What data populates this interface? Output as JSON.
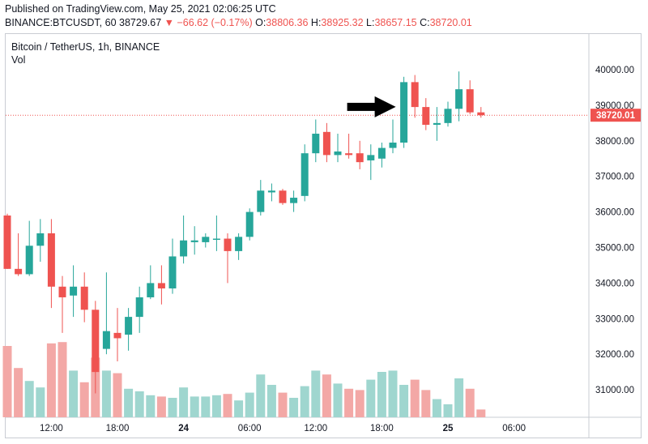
{
  "header": {
    "published": "Published on TradingView.com, May 25, 2021 02:06:25 UTC",
    "symbol": "BINANCE:BTCUSDT, 60",
    "last": "38729.67",
    "change": "▼ −66.62 (−0.17%)",
    "open_label": "O:",
    "open_value": "38806.36",
    "high_label": "H:",
    "high_value": "38925.32",
    "low_label": "L:",
    "low_value": "38657.15",
    "close_label": "C:",
    "close_value": "38720.01"
  },
  "legend": {
    "title": "Bitcoin / TetherUS, 1h, BINANCE",
    "volume": "Vol"
  },
  "colors": {
    "up": "#26a69a",
    "down": "#ef5350",
    "up_vol": "#9fd6cf",
    "down_vol": "#f3a8a6",
    "price_line": "#ef5350"
  },
  "chart_data": {
    "type": "candlestick",
    "price_axis": {
      "min": 30400,
      "max": 40400,
      "ticks": [
        "40000.00",
        "39000.00",
        "38000.00",
        "37000.00",
        "36000.00",
        "35000.00",
        "34000.00",
        "33000.00",
        "32000.00",
        "31000.00"
      ]
    },
    "time_axis": {
      "ticks": [
        {
          "label": "12:00",
          "bar": 4,
          "bold": false
        },
        {
          "label": "18:00",
          "bar": 10,
          "bold": false
        },
        {
          "label": "24",
          "bar": 16,
          "bold": true
        },
        {
          "label": "06:00",
          "bar": 22,
          "bold": false
        },
        {
          "label": "12:00",
          "bar": 28,
          "bold": false
        },
        {
          "label": "18:00",
          "bar": 34,
          "bold": false
        },
        {
          "label": "25",
          "bar": 40,
          "bold": true
        },
        {
          "label": "06:00",
          "bar": 46,
          "bold": false
        }
      ]
    },
    "last_price": "38720.01",
    "last_price_value": 38720.01,
    "volume_scale_max": 1,
    "candles": [
      {
        "o": 35900,
        "h": 35950,
        "l": 34400,
        "c": 34400,
        "v": 0.55
      },
      {
        "o": 34400,
        "h": 35400,
        "l": 34200,
        "c": 34250,
        "v": 0.38
      },
      {
        "o": 34250,
        "h": 35750,
        "l": 34200,
        "c": 35050,
        "v": 0.28
      },
      {
        "o": 35050,
        "h": 35800,
        "l": 34600,
        "c": 35400,
        "v": 0.23
      },
      {
        "o": 35400,
        "h": 35800,
        "l": 33300,
        "c": 33900,
        "v": 0.57
      },
      {
        "o": 33900,
        "h": 34200,
        "l": 32600,
        "c": 33600,
        "v": 0.58
      },
      {
        "o": 33650,
        "h": 34500,
        "l": 33050,
        "c": 33900,
        "v": 0.36
      },
      {
        "o": 33900,
        "h": 34300,
        "l": 32900,
        "c": 33250,
        "v": 0.27
      },
      {
        "o": 33250,
        "h": 33500,
        "l": 30900,
        "c": 31500,
        "v": 0.46
      },
      {
        "o": 32150,
        "h": 34300,
        "l": 32000,
        "c": 32650,
        "v": 0.36
      },
      {
        "o": 32600,
        "h": 33300,
        "l": 31800,
        "c": 32450,
        "v": 0.34
      },
      {
        "o": 32550,
        "h": 33300,
        "l": 32100,
        "c": 33050,
        "v": 0.22
      },
      {
        "o": 33050,
        "h": 33900,
        "l": 32600,
        "c": 33600,
        "v": 0.2
      },
      {
        "o": 33600,
        "h": 34500,
        "l": 33550,
        "c": 34000,
        "v": 0.17
      },
      {
        "o": 34000,
        "h": 34500,
        "l": 33400,
        "c": 33850,
        "v": 0.16
      },
      {
        "o": 33850,
        "h": 35250,
        "l": 33700,
        "c": 34750,
        "v": 0.15
      },
      {
        "o": 34750,
        "h": 35900,
        "l": 34550,
        "c": 35200,
        "v": 0.23
      },
      {
        "o": 35150,
        "h": 35600,
        "l": 34800,
        "c": 35200,
        "v": 0.16
      },
      {
        "o": 35150,
        "h": 35400,
        "l": 35000,
        "c": 35300,
        "v": 0.16
      },
      {
        "o": 35250,
        "h": 35900,
        "l": 34900,
        "c": 35250,
        "v": 0.17
      },
      {
        "o": 35250,
        "h": 35400,
        "l": 34000,
        "c": 34900,
        "v": 0.18
      },
      {
        "o": 34900,
        "h": 35400,
        "l": 34650,
        "c": 35300,
        "v": 0.13
      },
      {
        "o": 35300,
        "h": 36100,
        "l": 35200,
        "c": 36000,
        "v": 0.19
      },
      {
        "o": 36000,
        "h": 36900,
        "l": 35900,
        "c": 36600,
        "v": 0.33
      },
      {
        "o": 36550,
        "h": 36800,
        "l": 36300,
        "c": 36600,
        "v": 0.25
      },
      {
        "o": 36600,
        "h": 36650,
        "l": 36200,
        "c": 36250,
        "v": 0.19
      },
      {
        "o": 36250,
        "h": 36600,
        "l": 36000,
        "c": 36400,
        "v": 0.15
      },
      {
        "o": 36450,
        "h": 37900,
        "l": 36300,
        "c": 37650,
        "v": 0.24
      },
      {
        "o": 37650,
        "h": 38600,
        "l": 37400,
        "c": 38200,
        "v": 0.36
      },
      {
        "o": 38250,
        "h": 38500,
        "l": 37400,
        "c": 37600,
        "v": 0.33
      },
      {
        "o": 37600,
        "h": 38200,
        "l": 37400,
        "c": 37700,
        "v": 0.26
      },
      {
        "o": 37650,
        "h": 38200,
        "l": 37500,
        "c": 37600,
        "v": 0.22
      },
      {
        "o": 37650,
        "h": 38000,
        "l": 37200,
        "c": 37400,
        "v": 0.21
      },
      {
        "o": 37450,
        "h": 37900,
        "l": 36900,
        "c": 37600,
        "v": 0.29
      },
      {
        "o": 37500,
        "h": 37950,
        "l": 37250,
        "c": 37800,
        "v": 0.35
      },
      {
        "o": 37800,
        "h": 38600,
        "l": 37650,
        "c": 37950,
        "v": 0.36
      },
      {
        "o": 37950,
        "h": 39800,
        "l": 37800,
        "c": 39650,
        "v": 0.25
      },
      {
        "o": 39650,
        "h": 39850,
        "l": 38650,
        "c": 38950,
        "v": 0.29
      },
      {
        "o": 38950,
        "h": 39200,
        "l": 38300,
        "c": 38450,
        "v": 0.21
      },
      {
        "o": 38450,
        "h": 38950,
        "l": 38000,
        "c": 38500,
        "v": 0.14
      },
      {
        "o": 38500,
        "h": 39100,
        "l": 38400,
        "c": 38900,
        "v": 0.1
      },
      {
        "o": 38900,
        "h": 39950,
        "l": 38550,
        "c": 39450,
        "v": 0.3
      },
      {
        "o": 39450,
        "h": 39700,
        "l": 38750,
        "c": 38800,
        "v": 0.22
      },
      {
        "o": 38800,
        "h": 38950,
        "l": 38650,
        "c": 38720,
        "v": 0.06
      }
    ]
  }
}
